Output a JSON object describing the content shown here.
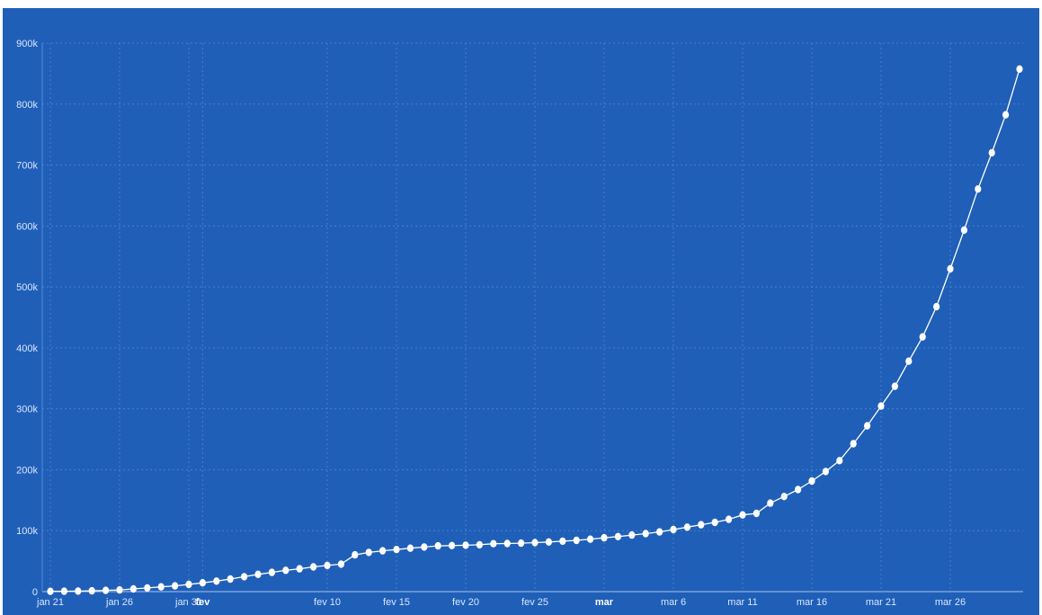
{
  "chart_data": {
    "type": "line",
    "title": "",
    "xlabel": "",
    "ylabel": "",
    "ylim": [
      0,
      900000
    ],
    "grid": true,
    "colors": {
      "background": "#1f5fb8",
      "line": "#ffffff",
      "grid": "#5a8ad6",
      "text": "#dbe7fb"
    },
    "y_ticks": [
      {
        "value": 0,
        "label": "0"
      },
      {
        "value": 100000,
        "label": "100k"
      },
      {
        "value": 200000,
        "label": "200k"
      },
      {
        "value": 300000,
        "label": "300k"
      },
      {
        "value": 400000,
        "label": "400k"
      },
      {
        "value": 500000,
        "label": "500k"
      },
      {
        "value": 600000,
        "label": "600k"
      },
      {
        "value": 700000,
        "label": "700k"
      },
      {
        "value": 800000,
        "label": "800k"
      },
      {
        "value": 900000,
        "label": "900k"
      }
    ],
    "x_ticks": [
      {
        "label": "jan 21",
        "date": "2020-01-21",
        "bold": false
      },
      {
        "label": "jan 26",
        "date": "2020-01-26",
        "bold": false
      },
      {
        "label": "jan 31",
        "date": "2020-01-31",
        "bold": false
      },
      {
        "label": "fev",
        "date": "2020-02-01",
        "bold": true
      },
      {
        "label": "fev 10",
        "date": "2020-02-10",
        "bold": false
      },
      {
        "label": "fev 15",
        "date": "2020-02-15",
        "bold": false
      },
      {
        "label": "fev 20",
        "date": "2020-02-20",
        "bold": false
      },
      {
        "label": "fev 25",
        "date": "2020-02-25",
        "bold": false
      },
      {
        "label": "mar",
        "date": "2020-03-01",
        "bold": true
      },
      {
        "label": "mar 6",
        "date": "2020-03-06",
        "bold": false
      },
      {
        "label": "mar 11",
        "date": "2020-03-11",
        "bold": false
      },
      {
        "label": "mar 16",
        "date": "2020-03-16",
        "bold": false
      },
      {
        "label": "mar 21",
        "date": "2020-03-21",
        "bold": false
      },
      {
        "label": "mar 26",
        "date": "2020-03-26",
        "bold": false
      }
    ],
    "series": [
      {
        "dates": [
          "2020-01-21",
          "2020-01-22",
          "2020-01-23",
          "2020-01-24",
          "2020-01-25",
          "2020-01-26",
          "2020-01-27",
          "2020-01-28",
          "2020-01-29",
          "2020-01-30",
          "2020-01-31",
          "2020-02-01",
          "2020-02-02",
          "2020-02-03",
          "2020-02-04",
          "2020-02-05",
          "2020-02-06",
          "2020-02-07",
          "2020-02-08",
          "2020-02-09",
          "2020-02-10",
          "2020-02-11",
          "2020-02-12",
          "2020-02-13",
          "2020-02-14",
          "2020-02-15",
          "2020-02-16",
          "2020-02-17",
          "2020-02-18",
          "2020-02-19",
          "2020-02-20",
          "2020-02-21",
          "2020-02-22",
          "2020-02-23",
          "2020-02-24",
          "2020-02-25",
          "2020-02-26",
          "2020-02-27",
          "2020-02-28",
          "2020-02-29",
          "2020-03-01",
          "2020-03-02",
          "2020-03-03",
          "2020-03-04",
          "2020-03-05",
          "2020-03-06",
          "2020-03-07",
          "2020-03-08",
          "2020-03-09",
          "2020-03-10",
          "2020-03-11",
          "2020-03-12",
          "2020-03-13",
          "2020-03-14",
          "2020-03-15",
          "2020-03-16",
          "2020-03-17",
          "2020-03-18",
          "2020-03-19",
          "2020-03-20",
          "2020-03-21",
          "2020-03-22",
          "2020-03-23",
          "2020-03-24",
          "2020-03-25",
          "2020-03-26",
          "2020-03-27",
          "2020-03-28",
          "2020-03-29",
          "2020-03-30",
          "2020-03-31"
        ],
        "values": [
          500,
          600,
          900,
          1300,
          2000,
          2800,
          4500,
          6000,
          7800,
          9500,
          11800,
          14500,
          17300,
          20600,
          24500,
          28300,
          31500,
          34900,
          37500,
          40500,
          43000,
          45200,
          60300,
          64400,
          67000,
          69000,
          71200,
          73200,
          75100,
          75600,
          76200,
          76800,
          78600,
          78900,
          79500,
          80400,
          81400,
          82700,
          84100,
          86000,
          88400,
          90300,
          92800,
          95100,
          97900,
          101800,
          105800,
          109800,
          113600,
          118600,
          125900,
          128300,
          145200,
          156100,
          167500,
          181500,
          197100,
          214900,
          242700,
          272100,
          304500,
          337000,
          378200,
          418000,
          467500,
          529600,
          593300,
          660700,
          720100,
          782400,
          857500
        ]
      }
    ]
  }
}
